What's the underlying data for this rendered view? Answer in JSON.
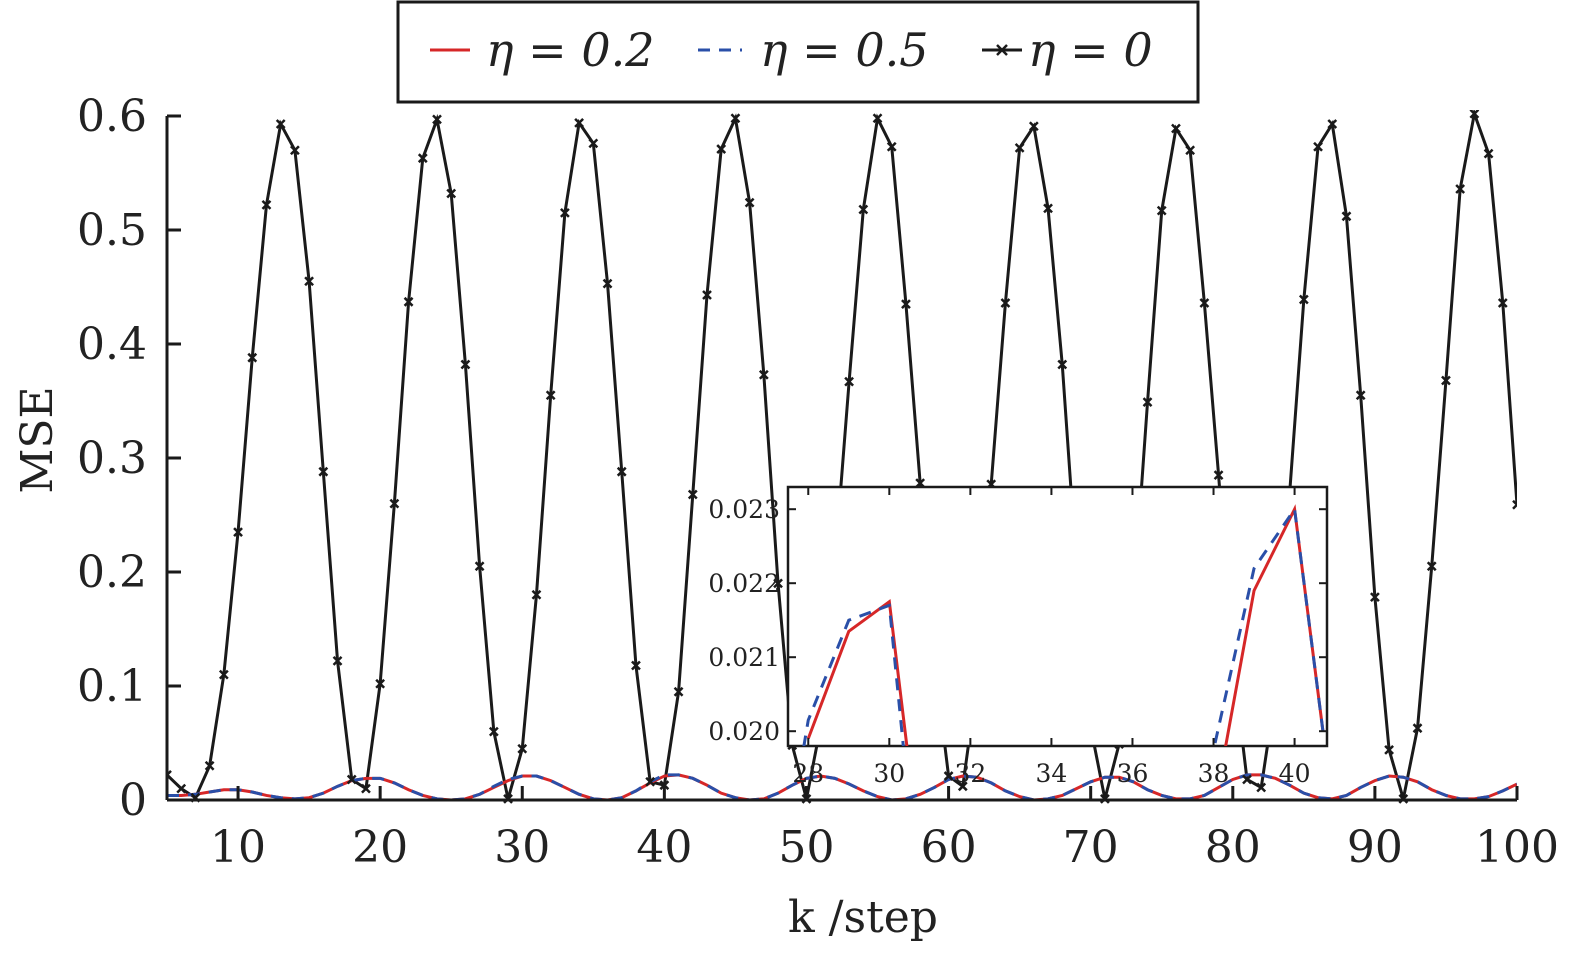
{
  "chart_data": {
    "type": "line",
    "xlabel": "k /step",
    "ylabel": "MSE",
    "xlim": [
      5,
      100
    ],
    "ylim": [
      0,
      0.6
    ],
    "xticks": [
      10,
      20,
      30,
      40,
      50,
      60,
      70,
      80,
      90,
      100
    ],
    "xtick_labels": [
      "10",
      "20",
      "30",
      "40",
      "50",
      "60",
      "70",
      "80",
      "90",
      "100"
    ],
    "yticks": [
      0,
      0.1,
      0.2,
      0.3,
      0.4,
      0.5,
      0.6
    ],
    "ytick_labels": [
      "0",
      "0.1",
      "0.2",
      "0.3",
      "0.4",
      "0.5",
      "0.6"
    ],
    "legend_placement": "top-center",
    "series": [
      {
        "name": "η = 0.2",
        "color": "#d62728",
        "style": "solid",
        "x": [
          5,
          6,
          7,
          8,
          9,
          10,
          11,
          12,
          13,
          14,
          15,
          16,
          17,
          18,
          19,
          20,
          21,
          22,
          23,
          24,
          25,
          26,
          27,
          28,
          29,
          30,
          31,
          32,
          33,
          34,
          35,
          36,
          37,
          38,
          39,
          40,
          41,
          42,
          43,
          44,
          45,
          46,
          47,
          48,
          49,
          50,
          51,
          52,
          53,
          54,
          55,
          56,
          57,
          58,
          59,
          60,
          61,
          62,
          63,
          64,
          65,
          66,
          67,
          68,
          69,
          70,
          71,
          72,
          73,
          74,
          75,
          76,
          77,
          78,
          79,
          80,
          81,
          82,
          83,
          84,
          85,
          86,
          87,
          88,
          89,
          90,
          91,
          92,
          93,
          94,
          95,
          96,
          97,
          98,
          99,
          100
        ],
        "y": [
          0.004,
          0.004,
          0.005,
          0.007,
          0.009,
          0.009,
          0.007,
          0.004,
          0.002,
          0.001,
          0.002,
          0.006,
          0.012,
          0.017,
          0.019,
          0.019,
          0.015,
          0.009,
          0.004,
          0.001,
          0.0,
          0.001,
          0.005,
          0.011,
          0.017,
          0.021,
          0.021,
          0.017,
          0.011,
          0.005,
          0.001,
          0.0,
          0.002,
          0.008,
          0.015,
          0.021,
          0.022,
          0.019,
          0.013,
          0.006,
          0.002,
          0.0,
          0.001,
          0.006,
          0.013,
          0.019,
          0.021,
          0.019,
          0.014,
          0.008,
          0.003,
          0.0,
          0.001,
          0.005,
          0.011,
          0.018,
          0.021,
          0.02,
          0.015,
          0.008,
          0.003,
          0.0,
          0.001,
          0.004,
          0.01,
          0.016,
          0.02,
          0.02,
          0.016,
          0.009,
          0.004,
          0.001,
          0.001,
          0.004,
          0.011,
          0.018,
          0.022,
          0.022,
          0.019,
          0.013,
          0.006,
          0.002,
          0.001,
          0.004,
          0.011,
          0.017,
          0.021,
          0.02,
          0.016,
          0.009,
          0.004,
          0.001,
          0.001,
          0.003,
          0.008,
          0.014
        ]
      },
      {
        "name": "η = 0.5",
        "color": "#2a4fa8",
        "style": "dashed",
        "x": [
          5,
          6,
          7,
          8,
          9,
          10,
          11,
          12,
          13,
          14,
          15,
          16,
          17,
          18,
          19,
          20,
          21,
          22,
          23,
          24,
          25,
          26,
          27,
          28,
          29,
          30,
          31,
          32,
          33,
          34,
          35,
          36,
          37,
          38,
          39,
          40,
          41,
          42,
          43,
          44,
          45,
          46,
          47,
          48,
          49,
          50,
          51,
          52,
          53,
          54,
          55,
          56,
          57,
          58,
          59,
          60,
          61,
          62,
          63,
          64,
          65,
          66,
          67,
          68,
          69,
          70,
          71,
          72,
          73,
          74,
          75,
          76,
          77,
          78,
          79,
          80,
          81,
          82,
          83,
          84,
          85,
          86,
          87,
          88,
          89,
          90,
          91,
          92,
          93,
          94,
          95,
          96,
          97,
          98,
          99,
          100
        ],
        "y": [
          0.004,
          0.004,
          0.005,
          0.007,
          0.009,
          0.009,
          0.007,
          0.004,
          0.002,
          0.001,
          0.002,
          0.006,
          0.012,
          0.017,
          0.019,
          0.019,
          0.015,
          0.009,
          0.004,
          0.001,
          0.0,
          0.001,
          0.005,
          0.012,
          0.018,
          0.021,
          0.021,
          0.017,
          0.011,
          0.005,
          0.001,
          0.0,
          0.002,
          0.008,
          0.016,
          0.022,
          0.022,
          0.019,
          0.013,
          0.006,
          0.002,
          0.0,
          0.001,
          0.006,
          0.013,
          0.019,
          0.021,
          0.019,
          0.014,
          0.008,
          0.003,
          0.0,
          0.001,
          0.005,
          0.011,
          0.018,
          0.021,
          0.02,
          0.015,
          0.008,
          0.003,
          0.0,
          0.001,
          0.004,
          0.01,
          0.016,
          0.02,
          0.02,
          0.016,
          0.009,
          0.004,
          0.001,
          0.001,
          0.004,
          0.011,
          0.018,
          0.022,
          0.022,
          0.019,
          0.013,
          0.006,
          0.002,
          0.001,
          0.004,
          0.011,
          0.017,
          0.021,
          0.02,
          0.016,
          0.009,
          0.004,
          0.001,
          0.001,
          0.003,
          0.008,
          0.014
        ]
      },
      {
        "name": "η = 0",
        "color": "#1a1a1a",
        "style": "solid-x-markers",
        "x": [
          5,
          6,
          7,
          8,
          9,
          10,
          11,
          12,
          13,
          14,
          15,
          16,
          17,
          18,
          19,
          20,
          21,
          22,
          23,
          24,
          25,
          26,
          27,
          28,
          29,
          30,
          31,
          32,
          33,
          34,
          35,
          36,
          37,
          38,
          39,
          40,
          41,
          42,
          43,
          44,
          45,
          46,
          47,
          48,
          49,
          50,
          51,
          52,
          53,
          54,
          55,
          56,
          57,
          58,
          59,
          60,
          61,
          62,
          63,
          64,
          65,
          66,
          67,
          68,
          69,
          70,
          71,
          72,
          73,
          74,
          75,
          76,
          77,
          78,
          79,
          80,
          81,
          82,
          83,
          84,
          85,
          86,
          87,
          88,
          89,
          90,
          91,
          92,
          93,
          94,
          95,
          96,
          97,
          98,
          99,
          100
        ],
        "y": [
          0.022,
          0.01,
          0.002,
          0.03,
          0.11,
          0.235,
          0.388,
          0.522,
          0.593,
          0.57,
          0.455,
          0.288,
          0.122,
          0.018,
          0.01,
          0.102,
          0.26,
          0.437,
          0.563,
          0.597,
          0.532,
          0.382,
          0.205,
          0.06,
          0.001,
          0.045,
          0.18,
          0.355,
          0.515,
          0.594,
          0.576,
          0.453,
          0.288,
          0.118,
          0.016,
          0.013,
          0.095,
          0.268,
          0.443,
          0.571,
          0.598,
          0.524,
          0.373,
          0.19,
          0.048,
          0.001,
          0.065,
          0.208,
          0.367,
          0.518,
          0.598,
          0.573,
          0.435,
          0.278,
          0.123,
          0.021,
          0.012,
          0.103,
          0.277,
          0.436,
          0.572,
          0.591,
          0.519,
          0.382,
          0.204,
          0.064,
          0.001,
          0.049,
          0.173,
          0.349,
          0.517,
          0.589,
          0.57,
          0.436,
          0.285,
          0.123,
          0.018,
          0.011,
          0.094,
          0.269,
          0.439,
          0.573,
          0.593,
          0.512,
          0.355,
          0.178,
          0.044,
          0.001,
          0.063,
          0.205,
          0.368,
          0.536,
          0.602,
          0.567,
          0.436,
          0.259
        ]
      }
    ],
    "inset": {
      "xlim": [
        27.5,
        40.8
      ],
      "ylim": [
        0.0198,
        0.0233
      ],
      "xticks": [
        28,
        30,
        32,
        34,
        36,
        38,
        40
      ],
      "xtick_labels": [
        "28",
        "30",
        "32",
        "34",
        "36",
        "38",
        "40"
      ],
      "yticks": [
        0.02,
        0.021,
        0.022,
        0.023
      ],
      "ytick_labels": [
        "0.020",
        "0.021",
        "0.022",
        "0.023"
      ],
      "series": [
        {
          "name": "η = 0.2",
          "x": [
            28,
            29,
            30,
            30.5,
            38.2,
            39,
            40,
            40.7
          ],
          "y": [
            0.0199,
            0.02135,
            0.02175,
            0.0195,
            0.0195,
            0.0219,
            0.023,
            0.02
          ]
        },
        {
          "name": "η = 0.5",
          "x": [
            27.8,
            28,
            29,
            30,
            30.4,
            37.9,
            39,
            40,
            40.7
          ],
          "y": [
            0.0195,
            0.02015,
            0.0215,
            0.0217,
            0.0195,
            0.0195,
            0.0222,
            0.023,
            0.02
          ]
        }
      ]
    }
  }
}
